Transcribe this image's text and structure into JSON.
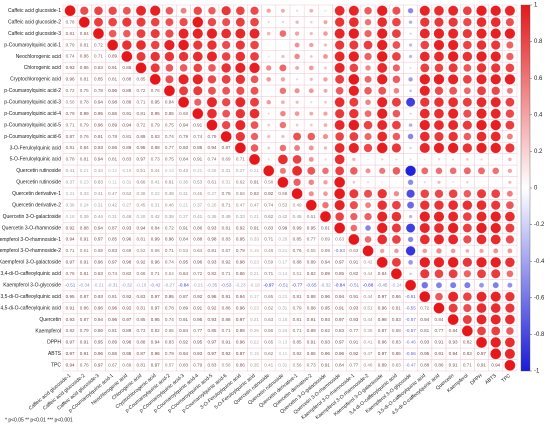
{
  "chart_data": {
    "type": "correlation-matrix",
    "variables": [
      "Caffeic acid glucoside-1",
      "Caffeic acid glucoside-2",
      "Caffeic acid glucoside-3",
      "p-Coumaroylquinic acid-1",
      "Neochlorogenic acid",
      "Chlorogenic acid",
      "Cryptochlorogenic acid",
      "p-Coumaroylquinic acid-2",
      "p-Coumaroylquinic acid-3",
      "p-Coumaroylquinic acid-4",
      "p-Coumaroylquinic acid-5",
      "p-Coumaroylquinic acid-6",
      "3-O-Feruloylquinic acid",
      "5-O-Feruloylquinic acid",
      "Quercetin rutinoside",
      "Quercetin rutinoside",
      "Quercetin derivative-1",
      "Quercetin derivative-2",
      "Quercetin 3-O-galactoside",
      "Quercetin 3-O-rhamnoside",
      "Kaempferol 3-O-rhamnoside-1",
      "Kaempferol 3-O-rhamnoside-2",
      "Kaempferol 3-O-galactoside",
      "3,4-di-O-caffeoylquinic acid",
      "Kaempferol 3-O-glycoside",
      "3,5-di-O-caffeoylquinic acid",
      "4,5-di-O-caffeoylquinic acid",
      "Quercetin",
      "Kaempferol",
      "DPPH",
      "ABTS",
      "TPC"
    ],
    "values": [
      [],
      [
        0.78
      ],
      [
        0.81,
        0.84
      ],
      [
        0.79,
        0.81,
        0.72
      ],
      [
        0.74,
        0.86,
        0.71,
        0.89
      ],
      [
        0.93,
        0.85,
        0.83,
        0.91,
        0.85
      ],
      [
        0.96,
        0.81,
        0.85,
        0.81,
        0.88,
        0.85
      ],
      [
        0.72,
        0.75,
        0.78,
        0.96,
        0.88,
        0.72,
        0.76
      ],
      [
        0.56,
        0.78,
        0.94,
        0.98,
        0.88,
        0.71,
        0.95,
        0.84
      ],
      [
        0.79,
        0.99,
        0.95,
        0.86,
        0.91,
        0.81,
        0.95,
        0.85,
        0.68
      ],
      [
        0.71,
        0.79,
        0.96,
        0.89,
        0.94,
        0.72,
        0.79,
        0.75,
        0.94,
        0.91
      ],
      [
        0.87,
        0.76,
        0.91,
        0.78,
        0.81,
        0.89,
        0.83,
        0.74,
        0.79,
        0.74,
        0.79
      ],
      [
        0.81,
        0.84,
        0.93,
        0.86,
        0.89,
        0.95,
        0.88,
        0.77,
        0.93,
        0.88,
        0.94,
        0.87
      ],
      [
        0.78,
        0.81,
        0.94,
        0.81,
        0.83,
        0.97,
        0.73,
        0.75,
        0.84,
        0.91,
        0.74,
        0.69,
        0.71
      ],
      [
        0.41,
        0.21,
        0.34,
        0.12,
        0.18,
        0.51,
        0.44,
        0.13,
        0.43,
        0.21,
        0.26,
        0.31,
        0.27,
        0.21
      ],
      [
        0.37,
        0.23,
        0.63,
        0.11,
        0.31,
        0.66,
        0.41,
        0.61,
        0.36,
        0.53,
        0.61,
        0.31,
        0.62,
        0.91,
        0.58
      ],
      [
        0.21,
        0.33,
        0.41,
        0.47,
        0.52,
        0.38,
        0.22,
        0.49,
        0.31,
        0.45,
        0.27,
        0.75,
        0.56,
        0.82,
        0.92,
        0.69
      ],
      [
        0.36,
        0.24,
        0.31,
        0.42,
        0.27,
        0.45,
        0.31,
        0.46,
        0.21,
        0.37,
        0.26,
        0.71,
        0.47,
        0.47,
        0.74,
        0.53,
        0.49
      ],
      [
        0.18,
        0.39,
        0.44,
        0.31,
        0.46,
        0.28,
        0.42,
        0.38,
        0.27,
        0.41,
        0.36,
        0.49,
        0.33,
        0.21,
        0.62,
        0.42,
        0.45,
        0.61
      ],
      [
        0.92,
        0.88,
        0.94,
        0.87,
        0.93,
        0.94,
        0.84,
        0.72,
        0.91,
        0.86,
        0.93,
        0.81,
        0.92,
        0.91,
        0.83,
        0.99,
        0.99,
        0.95,
        0.81
      ],
      [
        0.94,
        0.91,
        0.97,
        0.85,
        0.96,
        0.81,
        0.99,
        0.96,
        0.84,
        0.88,
        0.98,
        0.83,
        0.95,
        0.33,
        0.71,
        0.26,
        0.85,
        0.77,
        0.69,
        0.63
      ],
      [
        0.71,
        0.61,
        0.68,
        0.83,
        0.69,
        0.52,
        0.66,
        0.71,
        0.53,
        0.64,
        0.81,
        0.67,
        0.79,
        0.15,
        0.48,
        0.21,
        0.76,
        0.55,
        0.69,
        -0.53,
        0.63
      ],
      [
        0.97,
        0.91,
        0.96,
        0.97,
        0.98,
        0.92,
        0.96,
        0.74,
        0.95,
        0.96,
        0.93,
        0.92,
        0.98,
        0.23,
        0.59,
        0.17,
        0.88,
        0.89,
        0.94,
        0.97,
        0.91,
        0.42
      ],
      [
        0.76,
        0.81,
        0.83,
        0.74,
        0.82,
        0.68,
        0.71,
        0.54,
        0.84,
        0.72,
        0.82,
        0.71,
        0.86,
        0.21,
        0.71,
        0.14,
        0.51,
        0.82,
        0.89,
        0.85,
        0.82,
        0.44,
        0.84
      ],
      [
        -0.51,
        -0.34,
        -0.21,
        -0.31,
        -0.32,
        -0.18,
        -0.42,
        -0.27,
        -0.84,
        -0.21,
        -0.35,
        -0.53,
        -0.23,
        -0.18,
        -0.97,
        -0.51,
        -0.77,
        -0.65,
        -0.32,
        -0.84,
        -0.51,
        -0.88,
        -0.45,
        -0.24
      ],
      [
        0.95,
        0.87,
        0.93,
        0.81,
        0.92,
        0.83,
        0.97,
        0.95,
        0.87,
        0.92,
        0.96,
        0.91,
        0.94,
        0.17,
        0.65,
        0.21,
        0.81,
        0.88,
        0.96,
        0.94,
        0.91,
        0.44,
        0.97,
        0.86,
        -0.61
      ],
      [
        0.91,
        0.86,
        0.96,
        0.96,
        0.92,
        0.81,
        0.97,
        0.78,
        0.89,
        0.91,
        0.92,
        0.86,
        0.96,
        0.23,
        0.62,
        0.31,
        0.79,
        0.88,
        0.95,
        0.91,
        0.93,
        0.51,
        0.96,
        0.81,
        -0.55,
        0.72
      ],
      [
        0.93,
        0.87,
        0.94,
        0.96,
        0.97,
        0.85,
        0.95,
        0.74,
        0.91,
        0.95,
        0.93,
        0.88,
        0.97,
        0.21,
        0.63,
        0.18,
        0.81,
        0.91,
        0.93,
        0.97,
        0.93,
        0.44,
        0.98,
        0.83,
        -0.57,
        0.94,
        0.84
      ],
      [
        0.82,
        0.79,
        0.86,
        0.81,
        0.89,
        0.73,
        0.82,
        0.65,
        0.84,
        0.77,
        0.85,
        0.71,
        0.88,
        0.26,
        0.66,
        0.24,
        0.71,
        0.89,
        0.82,
        0.83,
        0.77,
        0.36,
        0.87,
        0.68,
        -0.57,
        0.81,
        0.77,
        0.84
      ],
      [
        0.97,
        0.91,
        0.95,
        0.89,
        0.96,
        0.88,
        0.94,
        0.83,
        0.92,
        0.95,
        0.97,
        0.91,
        0.96,
        0.22,
        0.65,
        0.13,
        0.85,
        0.91,
        0.93,
        0.97,
        0.91,
        0.41,
        0.96,
        0.83,
        -0.46,
        0.93,
        0.91,
        0.93,
        0.82
      ],
      [
        0.97,
        0.91,
        0.96,
        0.86,
        0.95,
        0.87,
        0.96,
        0.79,
        0.94,
        0.93,
        0.97,
        0.92,
        0.97,
        0.15,
        0.62,
        0.11,
        0.82,
        0.86,
        0.96,
        0.96,
        0.92,
        0.47,
        0.97,
        0.85,
        -0.56,
        0.95,
        0.91,
        0.94,
        0.83,
        0.97
      ],
      [
        0.94,
        0.76,
        0.97,
        0.67,
        0.69,
        0.81,
        0.97,
        0.57,
        0.83,
        0.79,
        0.83,
        0.56,
        0.86,
        0.35,
        0.41,
        0.31,
        0.56,
        0.73,
        0.91,
        0.84,
        0.77,
        0.46,
        0.89,
        0.63,
        -0.47,
        0.88,
        0.86,
        0.91,
        0.71,
        0.91,
        0.94
      ]
    ],
    "diagonal": 1,
    "colormap": [
      "#1b1bd6",
      "#ffffff",
      "#e2191c"
    ],
    "clim": [
      -1,
      1
    ],
    "cticks": [
      1,
      0.8,
      0.6,
      0.4,
      0.2,
      0,
      -0.2,
      -0.4,
      -0.6,
      -0.8,
      -1
    ],
    "footnote": "* p<0.05  ** p<0.01  *** p<0.001"
  }
}
